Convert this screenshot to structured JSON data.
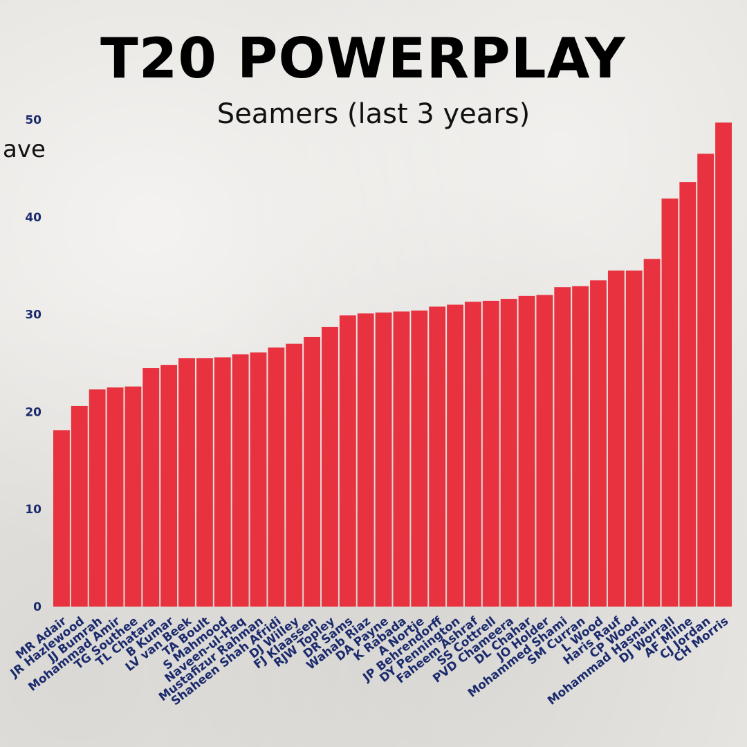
{
  "chart_data": {
    "type": "bar",
    "title": "T20 POWERPLAY",
    "subtitle": "Seamers (last 3 years)",
    "xlabel": "",
    "ylabel": "ave",
    "ylim": [
      0,
      50
    ],
    "yticks": [
      0,
      10,
      20,
      30,
      40,
      50
    ],
    "grid": false,
    "bar_color": "#e8323f",
    "label_color": "#1a2a6c",
    "categories": [
      "MR Adair",
      "JR Hazlewood",
      "JJ Bumrah",
      "Mohammad Amir",
      "TG Southee",
      "TL Chatara",
      "B Kumar",
      "LV van Beek",
      "TA Boult",
      "S Mahmood",
      "Naveen-ul-Haq",
      "Mustafizur Rahman",
      "Shaheen Shah Afridi",
      "DJ Willey",
      "FJ Klaassen",
      "RJW Topley",
      "DR Sams",
      "Wahab Riaz",
      "DA Payne",
      "K Rabada",
      "A Nortje",
      "JP Behrendorff",
      "DY Pennington",
      "Faheem Ashraf",
      "SS Cottrell",
      "PVD Chameera",
      "DL Chahar",
      "JO Holder",
      "Mohammed Shami",
      "SM Curran",
      "L Wood",
      "Haris Rauf",
      "CP Wood",
      "Mohammad Hasnain",
      "DJ Worrall",
      "AF Milne",
      "CJ Jordan",
      "CH Morris"
    ],
    "values": [
      18.1,
      20.6,
      22.3,
      22.5,
      22.6,
      24.5,
      24.8,
      25.5,
      25.5,
      25.6,
      25.9,
      26.1,
      26.6,
      27.0,
      27.7,
      28.7,
      29.9,
      30.1,
      30.2,
      30.3,
      30.4,
      30.8,
      31.0,
      31.3,
      31.4,
      31.6,
      31.9,
      32.0,
      32.8,
      32.9,
      33.5,
      34.5,
      34.5,
      35.7,
      41.9,
      43.6,
      46.5,
      49.7
    ]
  }
}
